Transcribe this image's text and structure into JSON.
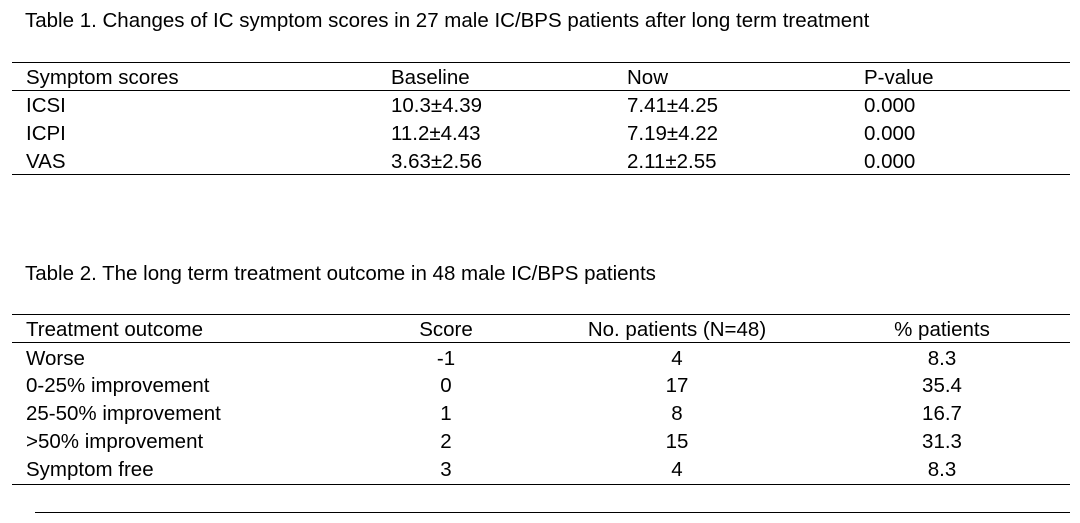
{
  "table1": {
    "caption": "Table 1. Changes of IC symptom scores in 27 male IC/BPS patients after long term treatment",
    "headers": [
      "Symptom scores",
      "Baseline",
      "Now",
      "P-value"
    ],
    "rows": [
      [
        "ICSI",
        "10.3±4.39",
        "7.41±4.25",
        "0.000"
      ],
      [
        "ICPI",
        "11.2±4.43",
        "7.19±4.22",
        "0.000"
      ],
      [
        "VAS",
        "3.63±2.56",
        "2.11±2.55",
        "0.000"
      ]
    ]
  },
  "table2": {
    "caption": "Table 2. The long term treatment outcome in 48 male IC/BPS patients",
    "headers": [
      "Treatment outcome",
      "Score",
      "No. patients (N=48)",
      "% patients"
    ],
    "rows": [
      [
        "Worse",
        "-1",
        "4",
        "8.3"
      ],
      [
        "0-25% improvement",
        "0",
        "17",
        "35.4"
      ],
      [
        "25-50% improvement",
        "1",
        "8",
        "16.7"
      ],
      [
        ">50% improvement",
        "2",
        "15",
        "31.3"
      ],
      [
        "Symptom free",
        "3",
        "4",
        "8.3"
      ]
    ]
  }
}
